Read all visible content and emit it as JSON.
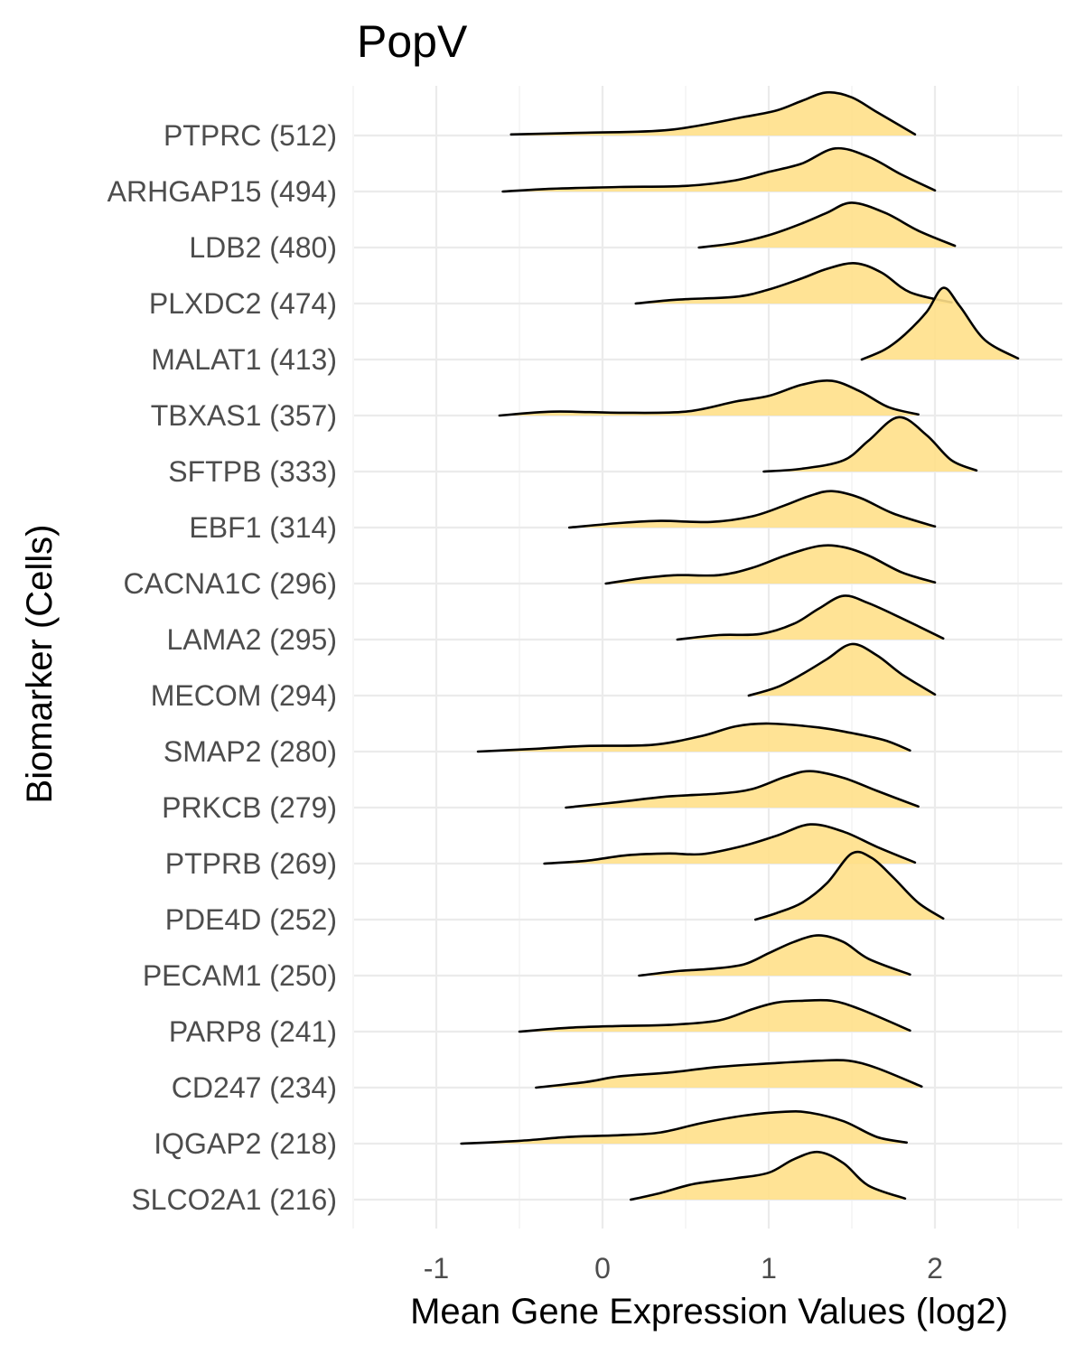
{
  "chart_data": {
    "type": "ridgeline",
    "title": "PopV",
    "xlabel": "Mean Gene Expression Values (log2)",
    "ylabel": "Biomarker (Cells)",
    "xlim": [
      -1.55,
      2.75
    ],
    "x_ticks": [
      -1,
      0,
      1,
      2
    ],
    "fill_color": "#ffe08a",
    "line_color": "#000000",
    "grid": true,
    "series": [
      {
        "label": "PTPRC (512)",
        "points": [
          [
            -0.55,
            0.02
          ],
          [
            -0.1,
            0.05
          ],
          [
            0.4,
            0.1
          ],
          [
            0.85,
            0.33
          ],
          [
            1.05,
            0.45
          ],
          [
            1.2,
            0.62
          ],
          [
            1.35,
            0.77
          ],
          [
            1.5,
            0.68
          ],
          [
            1.65,
            0.42
          ],
          [
            1.88,
            0.02
          ]
        ]
      },
      {
        "label": "ARHGAP15 (494)",
        "points": [
          [
            -0.6,
            0.0
          ],
          [
            -0.3,
            0.05
          ],
          [
            0.1,
            0.08
          ],
          [
            0.5,
            0.1
          ],
          [
            0.8,
            0.2
          ],
          [
            1.0,
            0.35
          ],
          [
            1.2,
            0.5
          ],
          [
            1.4,
            0.77
          ],
          [
            1.6,
            0.62
          ],
          [
            1.8,
            0.3
          ],
          [
            2.0,
            0.02
          ]
        ]
      },
      {
        "label": "LDB2 (480)",
        "points": [
          [
            0.58,
            0.0
          ],
          [
            0.8,
            0.08
          ],
          [
            1.0,
            0.22
          ],
          [
            1.2,
            0.43
          ],
          [
            1.35,
            0.62
          ],
          [
            1.5,
            0.8
          ],
          [
            1.7,
            0.62
          ],
          [
            1.9,
            0.3
          ],
          [
            2.12,
            0.03
          ]
        ]
      },
      {
        "label": "PLXDC2 (474)",
        "points": [
          [
            0.2,
            0.0
          ],
          [
            0.45,
            0.07
          ],
          [
            0.8,
            0.12
          ],
          [
            1.0,
            0.25
          ],
          [
            1.2,
            0.45
          ],
          [
            1.35,
            0.62
          ],
          [
            1.52,
            0.72
          ],
          [
            1.68,
            0.55
          ],
          [
            1.85,
            0.2
          ],
          [
            2.1,
            0.02
          ]
        ]
      },
      {
        "label": "MALAT1 (413)",
        "points": [
          [
            1.56,
            0.0
          ],
          [
            1.7,
            0.18
          ],
          [
            1.82,
            0.45
          ],
          [
            1.95,
            0.85
          ],
          [
            2.05,
            1.28
          ],
          [
            2.15,
            0.95
          ],
          [
            2.3,
            0.35
          ],
          [
            2.5,
            0.02
          ]
        ]
      },
      {
        "label": "TBXAS1 (357)",
        "points": [
          [
            -0.62,
            0.0
          ],
          [
            -0.3,
            0.07
          ],
          [
            0.1,
            0.05
          ],
          [
            0.5,
            0.07
          ],
          [
            0.8,
            0.25
          ],
          [
            1.0,
            0.35
          ],
          [
            1.2,
            0.55
          ],
          [
            1.38,
            0.62
          ],
          [
            1.55,
            0.43
          ],
          [
            1.72,
            0.15
          ],
          [
            1.9,
            0.02
          ]
        ]
      },
      {
        "label": "SFTPB (333)",
        "points": [
          [
            0.97,
            0.0
          ],
          [
            1.2,
            0.05
          ],
          [
            1.45,
            0.2
          ],
          [
            1.6,
            0.55
          ],
          [
            1.78,
            0.97
          ],
          [
            1.95,
            0.65
          ],
          [
            2.1,
            0.2
          ],
          [
            2.25,
            0.02
          ]
        ]
      },
      {
        "label": "EBF1 (314)",
        "points": [
          [
            -0.2,
            0.0
          ],
          [
            0.1,
            0.08
          ],
          [
            0.35,
            0.12
          ],
          [
            0.65,
            0.1
          ],
          [
            0.9,
            0.2
          ],
          [
            1.1,
            0.4
          ],
          [
            1.25,
            0.57
          ],
          [
            1.38,
            0.65
          ],
          [
            1.55,
            0.53
          ],
          [
            1.75,
            0.25
          ],
          [
            2.0,
            0.02
          ]
        ]
      },
      {
        "label": "CACNA1C (296)",
        "points": [
          [
            0.02,
            0.0
          ],
          [
            0.25,
            0.1
          ],
          [
            0.45,
            0.15
          ],
          [
            0.7,
            0.15
          ],
          [
            0.9,
            0.28
          ],
          [
            1.1,
            0.5
          ],
          [
            1.3,
            0.67
          ],
          [
            1.45,
            0.65
          ],
          [
            1.6,
            0.5
          ],
          [
            1.8,
            0.2
          ],
          [
            2.0,
            0.02
          ]
        ]
      },
      {
        "label": "LAMA2 (295)",
        "points": [
          [
            0.45,
            0.0
          ],
          [
            0.7,
            0.08
          ],
          [
            0.95,
            0.1
          ],
          [
            1.15,
            0.28
          ],
          [
            1.3,
            0.55
          ],
          [
            1.45,
            0.78
          ],
          [
            1.6,
            0.65
          ],
          [
            1.8,
            0.38
          ],
          [
            2.05,
            0.02
          ]
        ]
      },
      {
        "label": "MECOM (294)",
        "points": [
          [
            0.88,
            0.0
          ],
          [
            1.05,
            0.15
          ],
          [
            1.2,
            0.38
          ],
          [
            1.35,
            0.65
          ],
          [
            1.5,
            0.92
          ],
          [
            1.65,
            0.72
          ],
          [
            1.8,
            0.38
          ],
          [
            2.0,
            0.02
          ]
        ]
      },
      {
        "label": "SMAP2 (280)",
        "points": [
          [
            -0.75,
            0.0
          ],
          [
            -0.4,
            0.05
          ],
          [
            -0.1,
            0.1
          ],
          [
            0.3,
            0.12
          ],
          [
            0.6,
            0.28
          ],
          [
            0.8,
            0.45
          ],
          [
            1.0,
            0.5
          ],
          [
            1.3,
            0.43
          ],
          [
            1.5,
            0.33
          ],
          [
            1.7,
            0.2
          ],
          [
            1.85,
            0.02
          ]
        ]
      },
      {
        "label": "PRKCB (279)",
        "points": [
          [
            -0.22,
            0.0
          ],
          [
            0.1,
            0.1
          ],
          [
            0.4,
            0.2
          ],
          [
            0.7,
            0.25
          ],
          [
            0.9,
            0.33
          ],
          [
            1.1,
            0.55
          ],
          [
            1.25,
            0.65
          ],
          [
            1.45,
            0.53
          ],
          [
            1.65,
            0.3
          ],
          [
            1.9,
            0.02
          ]
        ]
      },
      {
        "label": "PTPRB (269)",
        "points": [
          [
            -0.35,
            0.0
          ],
          [
            -0.1,
            0.05
          ],
          [
            0.15,
            0.15
          ],
          [
            0.4,
            0.18
          ],
          [
            0.6,
            0.17
          ],
          [
            0.85,
            0.32
          ],
          [
            1.05,
            0.5
          ],
          [
            1.25,
            0.7
          ],
          [
            1.45,
            0.57
          ],
          [
            1.65,
            0.3
          ],
          [
            1.88,
            0.02
          ]
        ]
      },
      {
        "label": "PDE4D (252)",
        "points": [
          [
            0.92,
            0.0
          ],
          [
            1.05,
            0.12
          ],
          [
            1.2,
            0.3
          ],
          [
            1.35,
            0.65
          ],
          [
            1.5,
            1.18
          ],
          [
            1.62,
            1.1
          ],
          [
            1.75,
            0.75
          ],
          [
            1.9,
            0.3
          ],
          [
            2.05,
            0.02
          ]
        ]
      },
      {
        "label": "PECAM1 (250)",
        "points": [
          [
            0.22,
            0.0
          ],
          [
            0.45,
            0.08
          ],
          [
            0.65,
            0.12
          ],
          [
            0.85,
            0.2
          ],
          [
            1.0,
            0.4
          ],
          [
            1.15,
            0.6
          ],
          [
            1.3,
            0.72
          ],
          [
            1.45,
            0.6
          ],
          [
            1.6,
            0.3
          ],
          [
            1.85,
            0.02
          ]
        ]
      },
      {
        "label": "PARP8 (241)",
        "points": [
          [
            -0.5,
            0.0
          ],
          [
            -0.2,
            0.07
          ],
          [
            0.1,
            0.1
          ],
          [
            0.4,
            0.12
          ],
          [
            0.7,
            0.2
          ],
          [
            0.9,
            0.4
          ],
          [
            1.05,
            0.52
          ],
          [
            1.2,
            0.55
          ],
          [
            1.38,
            0.55
          ],
          [
            1.55,
            0.4
          ],
          [
            1.85,
            0.02
          ]
        ]
      },
      {
        "label": "CD247 (234)",
        "points": [
          [
            -0.4,
            0.0
          ],
          [
            -0.1,
            0.1
          ],
          [
            0.1,
            0.2
          ],
          [
            0.4,
            0.27
          ],
          [
            0.7,
            0.37
          ],
          [
            1.0,
            0.43
          ],
          [
            1.3,
            0.48
          ],
          [
            1.48,
            0.48
          ],
          [
            1.65,
            0.35
          ],
          [
            1.92,
            0.02
          ]
        ]
      },
      {
        "label": "IQGAP2 (218)",
        "points": [
          [
            -0.85,
            0.0
          ],
          [
            -0.5,
            0.05
          ],
          [
            -0.2,
            0.12
          ],
          [
            0.1,
            0.15
          ],
          [
            0.35,
            0.2
          ],
          [
            0.6,
            0.37
          ],
          [
            0.85,
            0.5
          ],
          [
            1.1,
            0.57
          ],
          [
            1.25,
            0.55
          ],
          [
            1.45,
            0.4
          ],
          [
            1.65,
            0.12
          ],
          [
            1.83,
            0.02
          ]
        ]
      },
      {
        "label": "SLCO2A1 (216)",
        "points": [
          [
            0.17,
            0.0
          ],
          [
            0.35,
            0.12
          ],
          [
            0.55,
            0.28
          ],
          [
            0.8,
            0.38
          ],
          [
            1.0,
            0.48
          ],
          [
            1.15,
            0.72
          ],
          [
            1.3,
            0.85
          ],
          [
            1.45,
            0.65
          ],
          [
            1.6,
            0.25
          ],
          [
            1.82,
            0.02
          ]
        ]
      }
    ]
  }
}
